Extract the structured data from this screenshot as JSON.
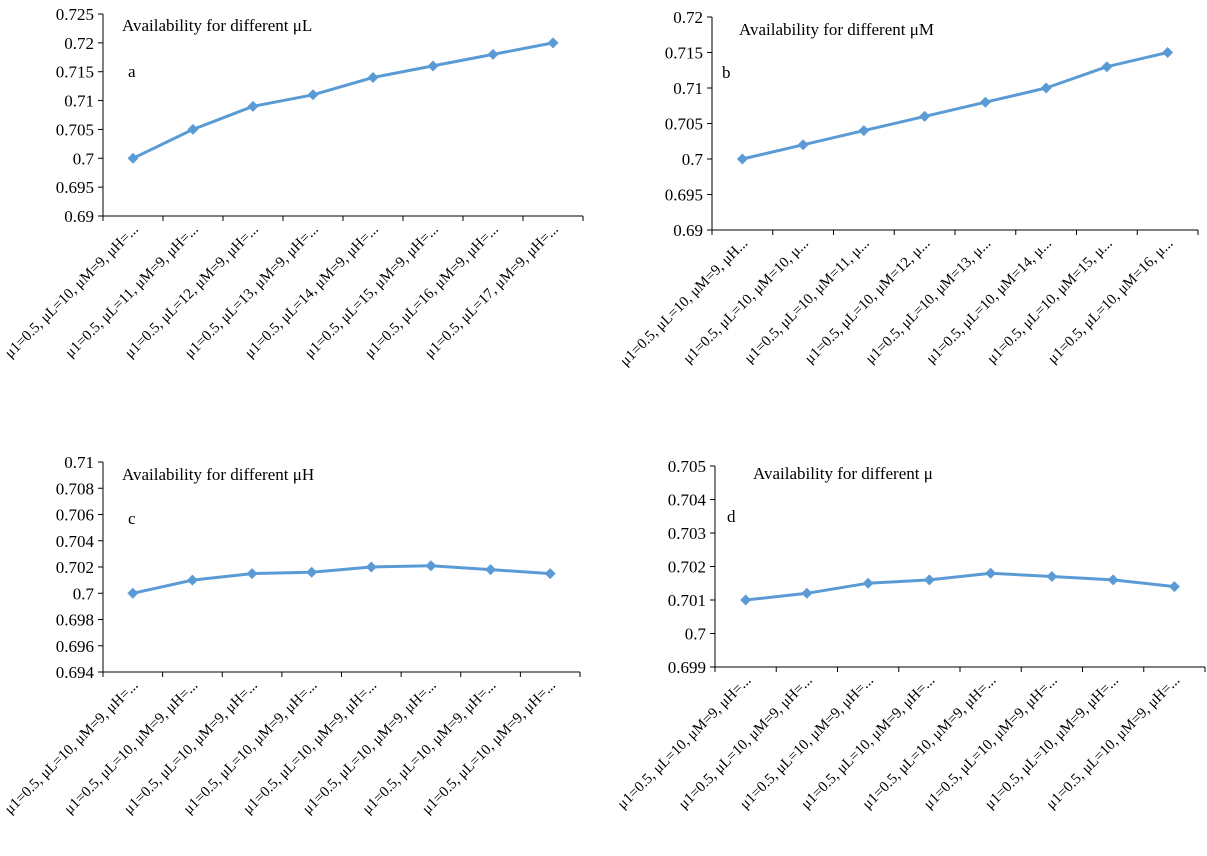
{
  "chart_data": [
    {
      "type": "line",
      "panel_label": "a",
      "title": "Availability for different μL",
      "categories": [
        "μ1=0.5, μL=10, μM=9, μH=...",
        "μ1=0.5, μL=11, μM=9, μH=...",
        "μ1=0.5, μL=12, μM=9, μH=...",
        "μ1=0.5, μL=13, μM=9, μH=...",
        "μ1=0.5, μL=14, μM=9, μH=...",
        "μ1=0.5, μL=15, μM=9, μH=...",
        "μ1=0.5, μL=16, μM=9, μH=...",
        "μ1=0.5, μL=17, μM=9, μH=..."
      ],
      "values": [
        0.7,
        0.705,
        0.709,
        0.711,
        0.714,
        0.716,
        0.718,
        0.72
      ],
      "ylim": [
        0.69,
        0.725
      ],
      "yticks": [
        "0.69",
        "0.695",
        "0.7",
        "0.705",
        "0.71",
        "0.715",
        "0.72",
        "0.725"
      ],
      "xlabel": "",
      "ylabel": "",
      "grid": false,
      "color": "#5b9bd5"
    },
    {
      "type": "line",
      "panel_label": "b",
      "title": "Availability for different μM",
      "categories": [
        "μ1=0.5, μL=10, μM=9, μH...",
        "μ1=0.5, μL=10, μM=10, μ...",
        "μ1=0.5, μL=10, μM=11, μ...",
        "μ1=0.5, μL=10, μM=12, μ...",
        "μ1=0.5, μL=10, μM=13, μ...",
        "μ1=0.5, μL=10, μM=14, μ...",
        "μ1=0.5, μL=10, μM=15, μ...",
        "μ1=0.5, μL=10, μM=16, μ..."
      ],
      "values": [
        0.7,
        0.702,
        0.704,
        0.706,
        0.708,
        0.71,
        0.713,
        0.715
      ],
      "ylim": [
        0.69,
        0.72
      ],
      "yticks": [
        "0.69",
        "0.695",
        "0.7",
        "0.705",
        "0.71",
        "0.715",
        "0.72"
      ],
      "xlabel": "",
      "ylabel": "",
      "grid": false,
      "color": "#5b9bd5"
    },
    {
      "type": "line",
      "panel_label": "c",
      "title": "Availability for different μH",
      "categories": [
        "μ1=0.5, μL=10, μM=9, μH=...",
        "μ1=0.5, μL=10, μM=9, μH=...",
        "μ1=0.5, μL=10, μM=9, μH=...",
        "μ1=0.5, μL=10, μM=9, μH=...",
        "μ1=0.5, μL=10, μM=9, μH=...",
        "μ1=0.5, μL=10, μM=9, μH=...",
        "μ1=0.5, μL=10, μM=9, μH=...",
        "μ1=0.5, μL=10, μM=9, μH=..."
      ],
      "values": [
        0.7,
        0.701,
        0.7015,
        0.7016,
        0.702,
        0.7021,
        0.7018,
        0.7015
      ],
      "ylim": [
        0.694,
        0.71
      ],
      "yticks": [
        "0.694",
        "0.696",
        "0.698",
        "0.7",
        "0.702",
        "0.704",
        "0.706",
        "0.708",
        "0.71"
      ],
      "xlabel": "",
      "ylabel": "",
      "grid": false,
      "color": "#5b9bd5"
    },
    {
      "type": "line",
      "panel_label": "d",
      "title": "Availability for different μ",
      "categories": [
        "μ1=0.5, μL=10, μM=9, μH=...",
        "μ1=0.5, μL=10, μM=9, μH=...",
        "μ1=0.5, μL=10, μM=9, μH=...",
        "μ1=0.5, μL=10, μM=9, μH=...",
        "μ1=0.5, μL=10, μM=9, μH=...",
        "μ1=0.5, μL=10, μM=9, μH=...",
        "μ1=0.5, μL=10, μM=9, μH=...",
        "μ1=0.5, μL=10, μM=9, μH=..."
      ],
      "values": [
        0.701,
        0.7012,
        0.7015,
        0.7016,
        0.7018,
        0.7017,
        0.7016,
        0.7014
      ],
      "ylim": [
        0.699,
        0.705
      ],
      "yticks": [
        "0.699",
        "0.7",
        "0.701",
        "0.702",
        "0.703",
        "0.704",
        "0.705"
      ],
      "xlabel": "",
      "ylabel": "",
      "grid": false,
      "color": "#5b9bd5"
    }
  ]
}
